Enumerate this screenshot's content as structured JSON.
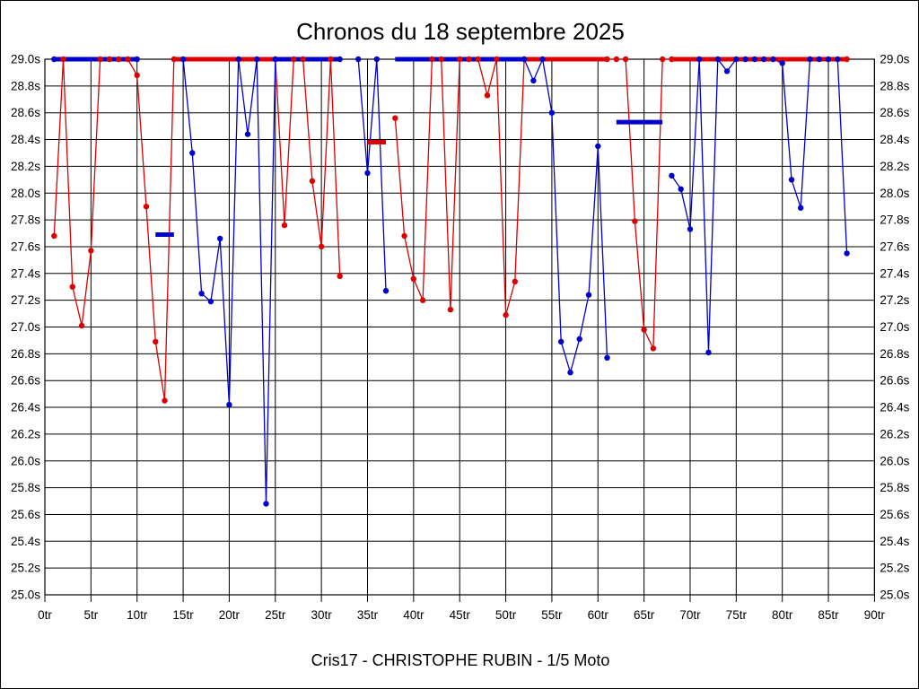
{
  "title": "Chronos du 18 septembre 2025",
  "caption": "Cris17 - CHRISTOPHE RUBIN - 1/5 Moto",
  "chart_data": {
    "type": "line",
    "title": "Chronos du 18 septembre 2025",
    "subtitle": "Cris17 - CHRISTOPHE RUBIN - 1/5 Moto",
    "x_unit": "tr",
    "y_unit": "s",
    "x_range": [
      0,
      90
    ],
    "y_range": [
      25.0,
      29.0
    ],
    "grid": true,
    "legend": "none",
    "x_ticks": [
      0,
      5,
      10,
      15,
      20,
      25,
      30,
      35,
      40,
      45,
      50,
      55,
      60,
      65,
      70,
      75,
      80,
      85,
      90
    ],
    "y_ticks": [
      29.0,
      28.8,
      28.6,
      28.4,
      28.2,
      28.0,
      27.8,
      27.6,
      27.4,
      27.2,
      27.0,
      26.8,
      26.6,
      26.4,
      26.2,
      26.0,
      25.8,
      25.6,
      25.4,
      25.2,
      25.0
    ],
    "cap_value": 29.0,
    "series": [
      {
        "name": "red",
        "color": "#dd0000",
        "segments": [
          [
            [
              1,
              27.68
            ],
            [
              2,
              29
            ],
            [
              3,
              27.3
            ],
            [
              4,
              27.01
            ],
            [
              5,
              27.57
            ],
            [
              6,
              29
            ],
            [
              7,
              29
            ],
            [
              8,
              29
            ],
            [
              9,
              29
            ],
            [
              10,
              28.88
            ],
            [
              11,
              27.9
            ],
            [
              12,
              26.89
            ],
            [
              13,
              26.45
            ],
            [
              14,
              29
            ],
            [
              15,
              29
            ],
            [
              16,
              29
            ],
            [
              17,
              29
            ],
            [
              18,
              29
            ],
            [
              19,
              29
            ],
            [
              20,
              29
            ],
            [
              21,
              29
            ],
            [
              22,
              29
            ],
            [
              23,
              29
            ],
            [
              24,
              29
            ],
            [
              25,
              29
            ],
            [
              26,
              27.76
            ],
            [
              27,
              29
            ],
            [
              28,
              29
            ],
            [
              29,
              28.09
            ],
            [
              30,
              27.6
            ],
            [
              31,
              29
            ],
            [
              32,
              27.38
            ]
          ],
          [
            [
              38,
              28.56
            ],
            [
              39,
              27.68
            ],
            [
              40,
              27.36
            ],
            [
              41,
              27.2
            ],
            [
              42,
              29
            ],
            [
              43,
              29
            ],
            [
              44,
              27.13
            ],
            [
              45,
              29
            ],
            [
              46,
              29
            ],
            [
              47,
              29
            ],
            [
              48,
              28.73
            ],
            [
              49,
              29
            ],
            [
              50,
              27.09
            ],
            [
              51,
              27.34
            ],
            [
              52,
              29
            ],
            [
              53,
              29
            ],
            [
              54,
              29
            ],
            [
              55,
              29
            ],
            [
              56,
              29
            ],
            [
              57,
              29
            ],
            [
              58,
              29
            ],
            [
              59,
              29
            ],
            [
              60,
              29
            ],
            [
              61,
              29
            ],
            [
              62,
              29
            ],
            [
              63,
              29
            ],
            [
              64,
              27.79
            ],
            [
              65,
              26.98
            ],
            [
              66,
              26.84
            ],
            [
              67,
              29
            ],
            [
              68,
              29
            ],
            [
              69,
              29
            ],
            [
              70,
              29
            ],
            [
              71,
              29
            ],
            [
              72,
              29
            ],
            [
              73,
              29
            ],
            [
              74,
              29
            ],
            [
              75,
              29
            ],
            [
              76,
              29
            ],
            [
              77,
              29
            ],
            [
              78,
              29
            ],
            [
              79,
              29
            ],
            [
              80,
              29
            ],
            [
              81,
              29
            ],
            [
              82,
              29
            ],
            [
              83,
              29
            ],
            [
              84,
              29
            ],
            [
              85,
              29
            ],
            [
              86,
              29
            ],
            [
              87,
              29
            ]
          ]
        ],
        "bars": [
          {
            "from": 14,
            "to": 25,
            "value": 29.0
          },
          {
            "from": 35,
            "to": 37,
            "value": 28.38
          },
          {
            "from": 52,
            "to": 61,
            "value": 29.0
          },
          {
            "from": 68,
            "to": 87,
            "value": 29.0
          }
        ]
      },
      {
        "name": "blue",
        "color": "#0000cc",
        "segments": [
          [
            [
              1,
              29
            ],
            [
              2,
              29
            ],
            [
              3,
              29
            ],
            [
              4,
              29
            ],
            [
              5,
              29
            ],
            [
              6,
              29
            ],
            [
              7,
              29
            ],
            [
              8,
              29
            ],
            [
              9,
              29
            ],
            [
              10,
              29
            ]
          ],
          [
            [
              15,
              29
            ],
            [
              16,
              28.3
            ],
            [
              17,
              27.25
            ],
            [
              18,
              27.19
            ],
            [
              19,
              27.66
            ],
            [
              20,
              26.42
            ],
            [
              21,
              29
            ],
            [
              22,
              28.44
            ],
            [
              23,
              29
            ],
            [
              24,
              25.68
            ],
            [
              25,
              29
            ],
            [
              26,
              29
            ],
            [
              27,
              29
            ],
            [
              28,
              29
            ],
            [
              29,
              29
            ],
            [
              30,
              29
            ],
            [
              31,
              29
            ],
            [
              32,
              29
            ]
          ],
          [
            [
              34,
              29
            ],
            [
              35,
              28.15
            ],
            [
              36,
              29
            ],
            [
              37,
              27.27
            ]
          ],
          [
            [
              52,
              29
            ],
            [
              53,
              28.84
            ],
            [
              54,
              29
            ],
            [
              55,
              28.6
            ],
            [
              56,
              26.89
            ],
            [
              57,
              26.66
            ],
            [
              58,
              26.91
            ],
            [
              59,
              27.24
            ],
            [
              60,
              28.35
            ],
            [
              61,
              26.77
            ]
          ],
          [
            [
              68,
              28.13
            ],
            [
              69,
              28.03
            ],
            [
              70,
              27.73
            ],
            [
              71,
              29
            ],
            [
              72,
              26.81
            ],
            [
              73,
              29
            ],
            [
              74,
              28.91
            ],
            [
              75,
              29
            ],
            [
              76,
              29
            ],
            [
              77,
              29
            ],
            [
              78,
              29
            ],
            [
              79,
              29
            ],
            [
              80,
              28.97
            ],
            [
              81,
              28.1
            ],
            [
              82,
              27.89
            ],
            [
              83,
              29
            ],
            [
              84,
              29
            ],
            [
              85,
              29
            ],
            [
              86,
              29
            ],
            [
              87,
              27.55
            ]
          ]
        ],
        "bars": [
          {
            "from": 1,
            "to": 10,
            "value": 29.0
          },
          {
            "from": 12,
            "to": 14,
            "value": 27.69
          },
          {
            "from": 25,
            "to": 32,
            "value": 29.0
          },
          {
            "from": 38,
            "to": 52,
            "value": 29.0
          },
          {
            "from": 62,
            "to": 67,
            "value": 28.53
          }
        ]
      }
    ]
  }
}
